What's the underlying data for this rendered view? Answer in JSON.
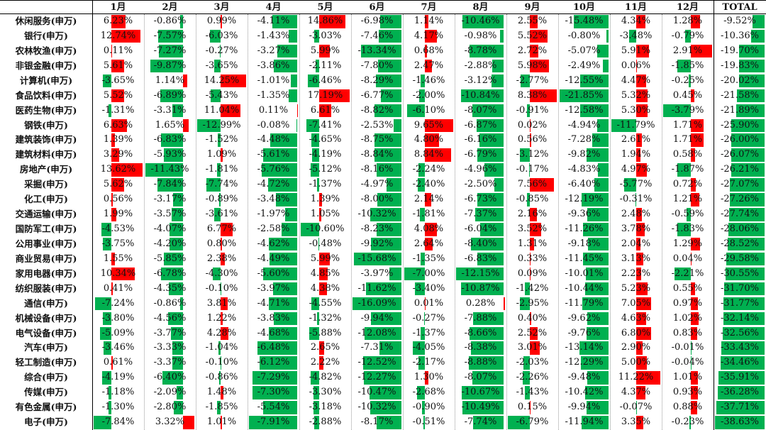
{
  "colors": {
    "positive": "#ff0000",
    "negative": "#00b050"
  },
  "headers": [
    "1月",
    "2月",
    "3月",
    "4月",
    "5月",
    "6月",
    "7月",
    "8月",
    "9月",
    "10月",
    "11月",
    "12月",
    "TOTAL"
  ],
  "rows": [
    {
      "label": "休闲服务(申万)",
      "values": [
        6.23,
        -0.86,
        0.99,
        -4.11,
        14.86,
        -6.98,
        1.14,
        -10.46,
        2.55,
        -15.48,
        4.34,
        1.28,
        -9.52
      ],
      "text": [
        "6.23%",
        "-0.86%",
        "0.99%",
        "-4.11%",
        "14.86%",
        "-6.98%",
        "1.14%",
        "-10.46%",
        "2.55%",
        "-15.48%",
        "4.34%",
        "1.28%",
        "-9.52%"
      ]
    },
    {
      "label": "银行(申万)",
      "values": [
        12.74,
        -7.57,
        -6.03,
        -1.43,
        -3.03,
        -7.46,
        4.17,
        -0.98,
        5.52,
        -0.8,
        -3.48,
        -0.79,
        -10.36
      ],
      "text": [
        "12.74%",
        "-7.57%",
        "-6.03%",
        "-1.43%",
        "-3.03%",
        "-7.46%",
        "4.17%",
        "-0.98%",
        "5.52%",
        "-0.80%",
        "-3.48%",
        "-0.79%",
        "-10.36%"
      ]
    },
    {
      "label": "农林牧渔(申万)",
      "values": [
        0.11,
        -7.27,
        -0.27,
        -3.27,
        5.99,
        -13.34,
        0.68,
        -8.78,
        2.72,
        -5.07,
        5.91,
        2.91,
        -19.7
      ],
      "text": [
        "0.11%",
        "-7.27%",
        "-0.27%",
        "-3.27%",
        "5.99%",
        "-13.34%",
        "0.68%",
        "-8.78%",
        "2.72%",
        "-5.07%",
        "5.91%",
        "2.91%",
        "-19.70%"
      ]
    },
    {
      "label": "非银金融(申万)",
      "values": [
        5.61,
        -9.87,
        -3.65,
        -3.86,
        -2.11,
        -7.8,
        2.47,
        -2.88,
        5.98,
        -2.49,
        0.06,
        -1.85,
        -19.83
      ],
      "text": [
        "5.61%",
        "-9.87%",
        "-3.65%",
        "-3.86%",
        "-2.11%",
        "-7.80%",
        "2.47%",
        "-2.88%",
        "5.98%",
        "-2.49%",
        "0.06%",
        "-1.85%",
        "-19.83%"
      ]
    },
    {
      "label": "计算机(申万)",
      "values": [
        -3.65,
        1.14,
        14.25,
        -1.01,
        -6.46,
        -8.29,
        -1.46,
        -3.12,
        -2.77,
        -12.55,
        4.47,
        -0.25,
        -20.02
      ],
      "text": [
        "-3.65%",
        "1.14%",
        "14.25%",
        "-1.01%",
        "-6.46%",
        "-8.29%",
        "-1.46%",
        "-3.12%",
        "-2.77%",
        "-12.55%",
        "4.47%",
        "-0.25%",
        "-20.02%"
      ]
    },
    {
      "label": "食品饮料(申万)",
      "values": [
        5.52,
        -6.89,
        -5.43,
        -1.35,
        17.19,
        -6.77,
        -2.0,
        -10.84,
        8.38,
        -21.85,
        5.32,
        0.45,
        -21.58
      ],
      "text": [
        "5.52%",
        "-6.89%",
        "-5.43%",
        "-1.35%",
        "17.19%",
        "-6.77%",
        "-2.00%",
        "-10.84%",
        "8.38%",
        "-21.85%",
        "5.32%",
        "0.45%",
        "-21.58%"
      ]
    },
    {
      "label": "医药生物(申万)",
      "values": [
        -1.31,
        -3.31,
        11.04,
        0.11,
        6.61,
        -8.82,
        -6.1,
        -8.07,
        -0.91,
        -12.58,
        5.3,
        -3.79,
        -21.89
      ],
      "text": [
        "-1.31%",
        "-3.31%",
        "11.04%",
        "0.11%",
        "6.61%",
        "-8.82%",
        "-6.10%",
        "-8.07%",
        "-0.91%",
        "-12.58%",
        "5.30%",
        "-3.79%",
        "-21.89%"
      ]
    },
    {
      "label": "钢铁(申万)",
      "values": [
        6.63,
        1.65,
        -12.99,
        -0.08,
        -7.41,
        -2.53,
        9.65,
        -6.87,
        0.02,
        -4.94,
        -11.79,
        1.71,
        -25.9
      ],
      "text": [
        "6.63%",
        "1.65%",
        "-12.99%",
        "-0.08%",
        "-7.41%",
        "-2.53%",
        "9.65%",
        "-6.87%",
        "0.02%",
        "-4.94%",
        "-11.79%",
        "1.71%",
        "-25.90%"
      ]
    },
    {
      "label": "建筑装饰(申万)",
      "values": [
        1.39,
        -6.83,
        -1.52,
        -4.48,
        -4.65,
        -8.75,
        4.8,
        -6.16,
        0.56,
        -7.28,
        2.61,
        1.71,
        -26.0
      ],
      "text": [
        "1.39%",
        "-6.83%",
        "-1.52%",
        "-4.48%",
        "-4.65%",
        "-8.75%",
        "4.80%",
        "-6.16%",
        "0.56%",
        "-7.28%",
        "2.61%",
        "1.71%",
        "-26.00%"
      ]
    },
    {
      "label": "建筑材料(申万)",
      "values": [
        3.29,
        -5.93,
        1.09,
        -5.61,
        -4.19,
        -8.84,
        8.84,
        -6.79,
        -3.12,
        -9.82,
        1.94,
        0.58,
        -26.07
      ],
      "text": [
        "3.29%",
        "-5.93%",
        "1.09%",
        "-5.61%",
        "-4.19%",
        "-8.84%",
        "8.84%",
        "-6.79%",
        "-3.12%",
        "-9.82%",
        "1.94%",
        "0.58%",
        "-26.07%"
      ]
    },
    {
      "label": "房地产(申万)",
      "values": [
        13.62,
        -11.43,
        -1.81,
        -5.76,
        -5.12,
        -8.16,
        -2.24,
        -4.96,
        -0.17,
        -4.83,
        4.97,
        -1.87,
        -26.21
      ],
      "text": [
        "13.62%",
        "-11.43%",
        "-1.81%",
        "-5.76%",
        "-5.12%",
        "-8.16%",
        "-2.24%",
        "-4.96%",
        "-0.17%",
        "-4.83%",
        "4.97%",
        "-1.87%",
        "-26.21%"
      ]
    },
    {
      "label": "采掘(申万)",
      "values": [
        5.62,
        -7.84,
        -7.74,
        -4.72,
        -1.37,
        -4.97,
        -2.4,
        -2.5,
        7.56,
        -6.4,
        -5.77,
        0.72,
        -27.07
      ],
      "text": [
        "5.62%",
        "-7.84%",
        "-7.74%",
        "-4.72%",
        "-1.37%",
        "-4.97%",
        "-2.40%",
        "-2.50%",
        "7.56%",
        "-6.40%",
        "-5.77%",
        "0.72%",
        "-27.07%"
      ]
    },
    {
      "label": "化工(申万)",
      "values": [
        0.56,
        -3.17,
        -0.89,
        -3.48,
        1.39,
        -8.0,
        2.14,
        -6.73,
        -0.85,
        -12.19,
        -0.31,
        1.21,
        -27.26
      ],
      "text": [
        "0.56%",
        "-3.17%",
        "-0.89%",
        "-3.48%",
        "1.39%",
        "-8.00%",
        "2.14%",
        "-6.73%",
        "-0.85%",
        "-12.19%",
        "-0.31%",
        "1.21%",
        "-27.26%"
      ]
    },
    {
      "label": "交通运输(申万)",
      "values": [
        1.99,
        -3.57,
        -3.61,
        -1.97,
        1.05,
        -10.32,
        -1.81,
        -7.37,
        2.16,
        -9.36,
        2.48,
        -0.59,
        -27.74
      ],
      "text": [
        "1.99%",
        "-3.57%",
        "-3.61%",
        "-1.97%",
        "1.05%",
        "-10.32%",
        "-1.81%",
        "-7.37%",
        "2.16%",
        "-9.36%",
        "2.48%",
        "-0.59%",
        "-27.74%"
      ]
    },
    {
      "label": "国防军工(申万)",
      "values": [
        -4.53,
        -4.07,
        6.77,
        -2.58,
        -10.6,
        -8.23,
        4.08,
        -6.04,
        3.52,
        -11.26,
        3.78,
        -1.83,
        -28.06
      ],
      "text": [
        "-4.53%",
        "-4.07%",
        "6.77%",
        "-2.58%",
        "-10.60%",
        "-8.23%",
        "4.08%",
        "-6.04%",
        "3.52%",
        "-11.26%",
        "3.78%",
        "-1.83%",
        "-28.06%"
      ]
    },
    {
      "label": "公用事业(申万)",
      "values": [
        -3.75,
        -4.2,
        0.8,
        -4.62,
        -0.48,
        -9.92,
        2.64,
        -8.4,
        1.31,
        -9.18,
        2.04,
        1.29,
        -28.52
      ],
      "text": [
        "-3.75%",
        "-4.20%",
        "0.80%",
        "-4.62%",
        "-0.48%",
        "-9.92%",
        "2.64%",
        "-8.40%",
        "1.31%",
        "-9.18%",
        "2.04%",
        "1.29%",
        "-28.52%"
      ]
    },
    {
      "label": "商业贸易(申万)",
      "values": [
        1.55,
        -5.85,
        2.38,
        -4.49,
        5.99,
        -15.68,
        -1.35,
        -6.83,
        0.33,
        -11.45,
        3.13,
        0.04,
        -29.58
      ],
      "text": [
        "1.55%",
        "-5.85%",
        "2.38%",
        "-4.49%",
        "5.99%",
        "-15.68%",
        "-1.35%",
        "-6.83%",
        "0.33%",
        "-11.45%",
        "3.13%",
        "0.04%",
        "-29.58%"
      ]
    },
    {
      "label": "家用电器(申万)",
      "values": [
        10.34,
        -6.78,
        -4.3,
        -5.6,
        4.85,
        -3.97,
        -7.0,
        -12.15,
        0.09,
        -10.01,
        2.23,
        -2.21,
        -30.55
      ],
      "text": [
        "10.34%",
        "-6.78%",
        "-4.30%",
        "-5.60%",
        "4.85%",
        "-3.97%",
        "-7.00%",
        "-12.15%",
        "0.09%",
        "-10.01%",
        "2.23%",
        "-2.21%",
        "-30.55%"
      ]
    },
    {
      "label": "纺织服装(申万)",
      "values": [
        0.41,
        -4.35,
        -0.1,
        -3.97,
        4.38,
        -11.62,
        -3.4,
        -10.87,
        -1.42,
        -10.44,
        5.23,
        0.55,
        -31.7
      ],
      "text": [
        "0.41%",
        "-4.35%",
        "-0.10%",
        "-3.97%",
        "4.38%",
        "-11.62%",
        "-3.40%",
        "-10.87%",
        "-1.42%",
        "-10.44%",
        "5.23%",
        "0.55%",
        "-31.70%"
      ]
    },
    {
      "label": "通信(申万)",
      "values": [
        -7.24,
        -0.86,
        3.81,
        -4.71,
        -4.55,
        -16.09,
        0.01,
        0.28,
        -2.95,
        -11.79,
        7.05,
        0.97,
        -31.77
      ],
      "text": [
        "-7.24%",
        "-0.86%",
        "3.81%",
        "-4.71%",
        "-4.55%",
        "-16.09%",
        "0.01%",
        "0.28%",
        "-2.95%",
        "-11.79%",
        "7.05%",
        "0.97%",
        "-31.77%"
      ]
    },
    {
      "label": "机械设备(申万)",
      "values": [
        -3.8,
        -4.56,
        1.22,
        -3.83,
        -1.32,
        -9.94,
        -0.27,
        -7.88,
        0.4,
        -9.62,
        4.63,
        1.02,
        -32.14
      ],
      "text": [
        "-3.80%",
        "-4.56%",
        "1.22%",
        "-3.83%",
        "-1.32%",
        "-9.94%",
        "-0.27%",
        "-7.88%",
        "0.40%",
        "-9.62%",
        "4.63%",
        "1.02%",
        "-32.14%"
      ]
    },
    {
      "label": "电气设备(申万)",
      "values": [
        -5.09,
        -3.77,
        4.28,
        -4.68,
        -5.88,
        -12.08,
        -1.37,
        -8.66,
        2.52,
        -9.76,
        6.8,
        0.83,
        -32.56
      ],
      "text": [
        "-5.09%",
        "-3.77%",
        "4.28%",
        "-4.68%",
        "-5.88%",
        "-12.08%",
        "-1.37%",
        "-8.66%",
        "2.52%",
        "-9.76%",
        "6.80%",
        "0.83%",
        "-32.56%"
      ]
    },
    {
      "label": "汽车(申万)",
      "values": [
        -3.46,
        -3.33,
        -1.04,
        -6.48,
        2.65,
        -7.31,
        -4.05,
        -8.38,
        3.01,
        -13.14,
        2.9,
        -0.01,
        -33.43
      ],
      "text": [
        "-3.46%",
        "-3.33%",
        "-1.04%",
        "-6.48%",
        "2.65%",
        "-7.31%",
        "-4.05%",
        "-8.38%",
        "3.01%",
        "-13.14%",
        "2.90%",
        "-0.01%",
        "-33.43%"
      ]
    },
    {
      "label": "轻工制造(申万)",
      "values": [
        0.61,
        -3.37,
        -0.1,
        -6.12,
        2.22,
        -12.52,
        -2.17,
        -8.88,
        -2.03,
        -12.29,
        5.0,
        -0.04,
        -34.46
      ],
      "text": [
        "0.61%",
        "-3.37%",
        "-0.10%",
        "-6.12%",
        "2.22%",
        "-12.52%",
        "-2.17%",
        "-8.88%",
        "-2.03%",
        "-12.29%",
        "5.00%",
        "-0.04%",
        "-34.46%"
      ]
    },
    {
      "label": "综合(申万)",
      "values": [
        -4.19,
        -6.4,
        -0.86,
        -7.29,
        -4.82,
        -12.27,
        1.3,
        -8.07,
        -2.26,
        -9.48,
        11.22,
        1.01,
        -35.91
      ],
      "text": [
        "-4.19%",
        "-6.40%",
        "-0.86%",
        "-7.29%",
        "-4.82%",
        "-12.27%",
        "1.30%",
        "-8.07%",
        "-2.26%",
        "-9.48%",
        "11.22%",
        "1.01%",
        "-35.91%"
      ]
    },
    {
      "label": "传媒(申万)",
      "values": [
        -1.18,
        -2.09,
        1.48,
        -7.3,
        -3.3,
        -10.47,
        -2.68,
        -10.67,
        -1.43,
        -10.42,
        4.37,
        0.93,
        -36.28
      ],
      "text": [
        "-1.18%",
        "-2.09%",
        "1.48%",
        "-7.30%",
        "-3.30%",
        "-10.47%",
        "-2.68%",
        "-10.67%",
        "-1.43%",
        "-10.42%",
        "4.37%",
        "0.93%",
        "-36.28%"
      ]
    },
    {
      "label": "有色金属(申万)",
      "values": [
        -1.3,
        -2.8,
        -1.85,
        -5.54,
        -3.18,
        -10.32,
        -0.9,
        -10.49,
        0.15,
        -9.94,
        -0.07,
        0.88,
        -37.71
      ],
      "text": [
        "-1.30%",
        "-2.80%",
        "-1.85%",
        "-5.54%",
        "-3.18%",
        "-10.32%",
        "-0.90%",
        "-10.49%",
        "0.15%",
        "-9.94%",
        "-0.07%",
        "0.88%",
        "-37.71%"
      ]
    },
    {
      "label": "电子(申万)",
      "values": [
        -7.84,
        3.32,
        1.01,
        -7.91,
        -2.88,
        -8.17,
        -0.51,
        -7.74,
        -6.79,
        -11.94,
        3.35,
        -0.23,
        -38.63
      ],
      "text": [
        "-7.84%",
        "3.32%",
        "1.01%",
        "-7.91%",
        "-2.88%",
        "-8.17%",
        "-0.51%",
        "-7.74%",
        "-6.79%",
        "-11.94%",
        "3.35%",
        "-0.23%",
        "-38.63%"
      ]
    }
  ]
}
